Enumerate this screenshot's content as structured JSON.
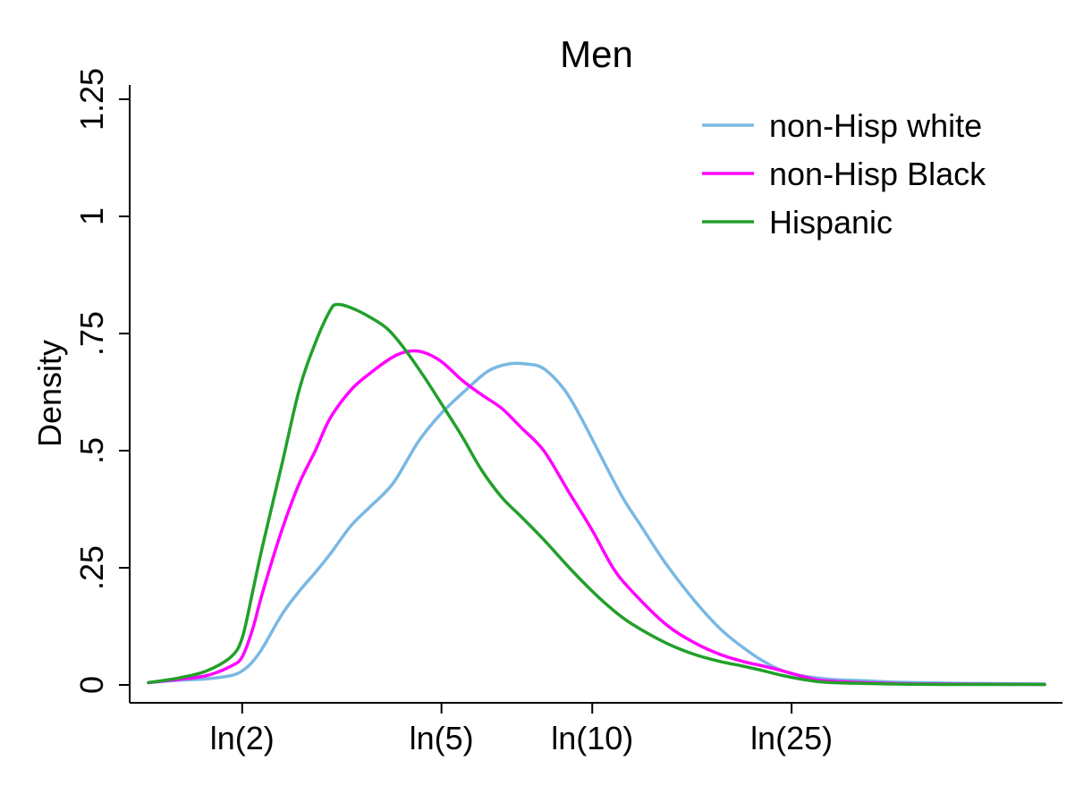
{
  "chart_data": {
    "type": "line",
    "title": "Men",
    "xlabel": "",
    "ylabel": "Density",
    "x_scale": "log",
    "xlim": [
      1.3,
      80
    ],
    "ylim": [
      0,
      1.25
    ],
    "x_ticks": [
      {
        "value": 2,
        "label": "ln(2)"
      },
      {
        "value": 5,
        "label": "ln(5)"
      },
      {
        "value": 10,
        "label": "ln(10)"
      },
      {
        "value": 25,
        "label": "ln(25)"
      }
    ],
    "y_ticks": [
      {
        "value": 0,
        "label": "0"
      },
      {
        "value": 0.25,
        "label": ".25"
      },
      {
        "value": 0.5,
        "label": ".5"
      },
      {
        "value": 0.75,
        "label": ".75"
      },
      {
        "value": 1,
        "label": "1"
      },
      {
        "value": 1.25,
        "label": "1.25"
      }
    ],
    "grid": false,
    "legend_position": "top-right",
    "series": [
      {
        "name": "non-Hisp white",
        "color": "#79b8e3",
        "x": [
          1.3,
          1.5,
          1.7,
          1.9,
          2.0,
          2.1,
          2.2,
          2.4,
          2.6,
          2.8,
          3.0,
          3.3,
          3.6,
          4.0,
          4.5,
          5.0,
          5.6,
          6.2,
          6.8,
          7.4,
          8.0,
          8.8,
          9.5,
          10.5,
          11.5,
          12.5,
          14.0,
          16.0,
          18.0,
          20.0,
          22.0,
          24.0,
          26.0,
          30.0,
          35.0,
          40.0,
          50.0,
          60.0,
          80.0
        ],
        "y": [
          0.005,
          0.01,
          0.013,
          0.02,
          0.03,
          0.05,
          0.08,
          0.15,
          0.2,
          0.24,
          0.28,
          0.34,
          0.38,
          0.43,
          0.52,
          0.58,
          0.63,
          0.67,
          0.685,
          0.685,
          0.675,
          0.63,
          0.57,
          0.48,
          0.4,
          0.34,
          0.26,
          0.18,
          0.12,
          0.08,
          0.05,
          0.03,
          0.02,
          0.012,
          0.009,
          0.006,
          0.004,
          0.003,
          0.002
        ]
      },
      {
        "name": "non-Hisp Black",
        "color": "#ff00ff",
        "x": [
          1.3,
          1.5,
          1.7,
          1.9,
          2.0,
          2.1,
          2.2,
          2.4,
          2.6,
          2.8,
          3.0,
          3.3,
          3.6,
          4.0,
          4.3,
          4.6,
          5.0,
          5.5,
          6.0,
          6.6,
          7.2,
          8.0,
          9.0,
          10.0,
          11.0,
          12.0,
          14.0,
          16.0,
          18.0,
          20.0,
          22.0,
          24.0,
          27.0,
          30.0,
          40.0,
          50.0,
          80.0
        ],
        "y": [
          0.005,
          0.012,
          0.02,
          0.04,
          0.06,
          0.12,
          0.2,
          0.33,
          0.43,
          0.5,
          0.57,
          0.63,
          0.665,
          0.7,
          0.712,
          0.71,
          0.69,
          0.65,
          0.62,
          0.59,
          0.55,
          0.5,
          0.41,
          0.33,
          0.25,
          0.2,
          0.13,
          0.09,
          0.065,
          0.05,
          0.04,
          0.03,
          0.015,
          0.008,
          0.003,
          0.002,
          0.001
        ]
      },
      {
        "name": "Hispanic",
        "color": "#22a02a",
        "x": [
          1.3,
          1.5,
          1.7,
          1.9,
          2.0,
          2.1,
          2.2,
          2.4,
          2.6,
          2.8,
          3.0,
          3.1,
          3.3,
          3.6,
          3.9,
          4.2,
          4.6,
          5.0,
          5.5,
          6.0,
          6.6,
          7.2,
          8.0,
          9.0,
          10.0,
          11.0,
          12.0,
          14.0,
          16.0,
          18.0,
          20.0,
          22.0,
          24.0,
          27.0,
          30.0,
          40.0,
          50.0,
          80.0
        ],
        "y": [
          0.005,
          0.015,
          0.03,
          0.06,
          0.1,
          0.2,
          0.3,
          0.47,
          0.63,
          0.73,
          0.8,
          0.812,
          0.805,
          0.785,
          0.76,
          0.72,
          0.66,
          0.6,
          0.53,
          0.46,
          0.4,
          0.36,
          0.31,
          0.25,
          0.2,
          0.16,
          0.13,
          0.09,
          0.065,
          0.05,
          0.04,
          0.03,
          0.02,
          0.01,
          0.005,
          0.002,
          0.001,
          0.001
        ]
      }
    ]
  }
}
